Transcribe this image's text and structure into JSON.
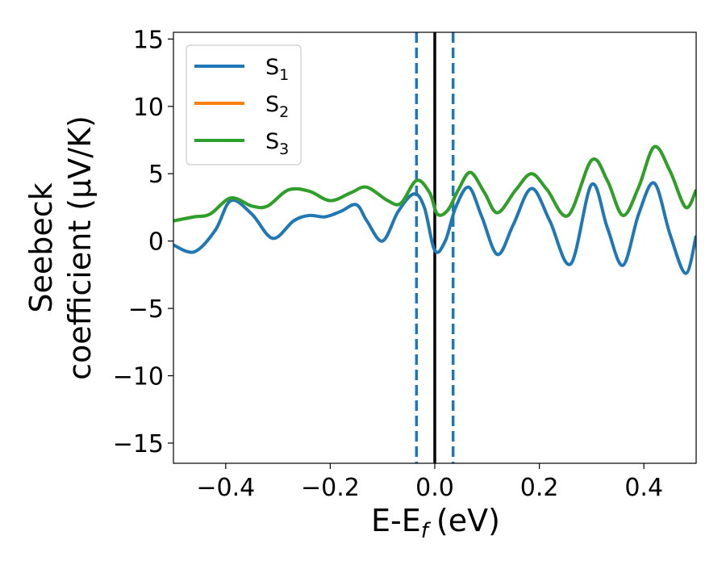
{
  "chart_data": {
    "type": "line",
    "title": "",
    "xlabel": "E-E",
    "xlabel_sub": "f",
    "xlabel_unit": "(eV)",
    "ylabel_line1": "Seebeck",
    "ylabel_line2": "coefficient  (μV/K)",
    "xlim": [
      -0.5,
      0.5
    ],
    "ylim": [
      -16.5,
      15.5
    ],
    "xticks": [
      -0.4,
      -0.2,
      0.0,
      0.2,
      0.4
    ],
    "xtick_labels": [
      "−0.4",
      "−0.2",
      "0.0",
      "0.2",
      "0.4"
    ],
    "yticks": [
      15,
      10,
      5,
      0,
      -5,
      -10,
      -15
    ],
    "ytick_labels": [
      "15",
      "10",
      "5",
      "0",
      "−5",
      "−10",
      "−15"
    ],
    "grid": false,
    "legend_position": "top-left",
    "vlines": [
      {
        "x": -0.035,
        "style": "dashed",
        "color": "#1f77b4"
      },
      {
        "x": 0.0,
        "style": "solid",
        "color": "#000000"
      },
      {
        "x": 0.035,
        "style": "dashed",
        "color": "#1f77b4"
      }
    ],
    "series": [
      {
        "name": "S",
        "sub": "1",
        "color": "#1f77b4",
        "x": [
          -0.5,
          -0.46,
          -0.42,
          -0.39,
          -0.35,
          -0.31,
          -0.27,
          -0.24,
          -0.21,
          -0.18,
          -0.15,
          -0.13,
          -0.1,
          -0.07,
          -0.04,
          -0.02,
          0.0,
          0.02,
          0.04,
          0.065,
          0.09,
          0.12,
          0.15,
          0.185,
          0.22,
          0.26,
          0.3,
          0.33,
          0.36,
          0.39,
          0.42,
          0.45,
          0.48,
          0.5
        ],
        "values": [
          -0.3,
          -0.8,
          0.8,
          3.0,
          2.0,
          0.2,
          1.5,
          1.9,
          1.8,
          2.2,
          2.7,
          1.5,
          0.0,
          2.2,
          3.5,
          2.5,
          -0.7,
          0.0,
          2.5,
          4.0,
          1.8,
          -1.0,
          1.2,
          3.9,
          1.5,
          -1.7,
          4.2,
          1.0,
          -1.8,
          2.0,
          4.3,
          0.5,
          -2.4,
          0.4
        ]
      },
      {
        "name": "S",
        "sub": "2",
        "color": "#ff7f0e",
        "x": [
          -0.5,
          -0.46,
          -0.43,
          -0.39,
          -0.35,
          -0.32,
          -0.28,
          -0.24,
          -0.2,
          -0.16,
          -0.13,
          -0.09,
          -0.065,
          -0.035,
          -0.01,
          0.005,
          0.025,
          0.045,
          0.068,
          0.095,
          0.12,
          0.155,
          0.185,
          0.215,
          0.255,
          0.3,
          0.33,
          0.36,
          0.39,
          0.42,
          0.45,
          0.48,
          0.5
        ],
        "values": [
          1.5,
          1.8,
          2.0,
          3.2,
          2.6,
          2.6,
          3.8,
          3.7,
          3.0,
          3.6,
          4.0,
          3.0,
          2.8,
          4.5,
          3.6,
          2.0,
          2.3,
          3.8,
          5.1,
          3.6,
          2.1,
          3.8,
          5.0,
          3.8,
          1.9,
          6.0,
          4.5,
          1.9,
          4.0,
          7.0,
          5.2,
          2.5,
          3.8
        ]
      },
      {
        "name": "S",
        "sub": "3",
        "color": "#2ca02c",
        "x": [
          -0.5,
          -0.46,
          -0.43,
          -0.39,
          -0.35,
          -0.32,
          -0.28,
          -0.24,
          -0.2,
          -0.16,
          -0.13,
          -0.09,
          -0.065,
          -0.035,
          -0.01,
          0.005,
          0.025,
          0.045,
          0.068,
          0.095,
          0.12,
          0.155,
          0.185,
          0.215,
          0.255,
          0.3,
          0.33,
          0.36,
          0.39,
          0.42,
          0.45,
          0.48,
          0.5
        ],
        "values": [
          1.5,
          1.8,
          2.0,
          3.2,
          2.6,
          2.6,
          3.8,
          3.7,
          3.0,
          3.6,
          4.0,
          3.0,
          2.8,
          4.5,
          3.6,
          2.0,
          2.3,
          3.8,
          5.1,
          3.6,
          2.1,
          3.8,
          5.0,
          3.8,
          1.9,
          6.0,
          4.5,
          1.9,
          4.0,
          7.0,
          5.2,
          2.5,
          3.8
        ]
      }
    ]
  }
}
